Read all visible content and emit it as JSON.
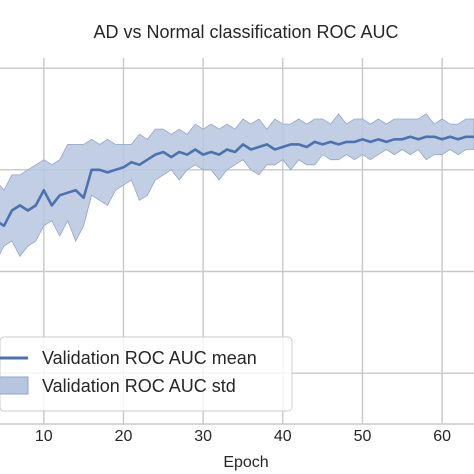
{
  "chart_data": {
    "type": "line",
    "title": "AD vs Normal classification ROC AUC",
    "xlabel": "Epoch",
    "ylabel": "",
    "xlim": [
      4.5,
      64
    ],
    "ylim": [
      0.3,
      1.02
    ],
    "xticks": [
      10,
      20,
      30,
      40,
      50,
      60
    ],
    "xtick_labels": [
      "10",
      "20",
      "30",
      "40",
      "50",
      "60"
    ],
    "ygrid": [
      0.4,
      0.6,
      0.8,
      1.0
    ],
    "grid": true,
    "legend_position": "lower-left",
    "colors": {
      "line": "#4c72b0",
      "band": "#b7c6df",
      "band_edge": "#8fa6cc",
      "grid": "#c8c8c8",
      "plot_background": "#ffffff"
    },
    "series": [
      {
        "name": "Validation ROC AUC mean",
        "kind": "line",
        "x": [
          4,
          5,
          6,
          7,
          8,
          9,
          10,
          11,
          12,
          13,
          14,
          15,
          16,
          17,
          18,
          19,
          20,
          21,
          22,
          23,
          24,
          25,
          26,
          27,
          28,
          29,
          30,
          31,
          32,
          33,
          34,
          35,
          36,
          37,
          38,
          39,
          40,
          41,
          42,
          43,
          44,
          45,
          46,
          47,
          48,
          49,
          50,
          51,
          52,
          53,
          54,
          55,
          56,
          57,
          58,
          59,
          60,
          61,
          62,
          63,
          64
        ],
        "values": [
          0.7,
          0.69,
          0.72,
          0.73,
          0.72,
          0.73,
          0.76,
          0.73,
          0.75,
          0.755,
          0.76,
          0.745,
          0.8,
          0.8,
          0.795,
          0.8,
          0.805,
          0.815,
          0.81,
          0.82,
          0.83,
          0.835,
          0.825,
          0.835,
          0.83,
          0.84,
          0.83,
          0.835,
          0.83,
          0.84,
          0.835,
          0.85,
          0.84,
          0.845,
          0.85,
          0.84,
          0.845,
          0.85,
          0.85,
          0.845,
          0.855,
          0.85,
          0.855,
          0.85,
          0.855,
          0.855,
          0.86,
          0.855,
          0.86,
          0.855,
          0.86,
          0.86,
          0.865,
          0.86,
          0.865,
          0.865,
          0.86,
          0.865,
          0.86,
          0.865,
          0.865
        ]
      },
      {
        "name": "Validation ROC AUC std",
        "kind": "band",
        "x": [
          4,
          5,
          6,
          7,
          8,
          9,
          10,
          11,
          12,
          13,
          14,
          15,
          16,
          17,
          18,
          19,
          20,
          21,
          22,
          23,
          24,
          25,
          26,
          27,
          28,
          29,
          30,
          31,
          32,
          33,
          34,
          35,
          36,
          37,
          38,
          39,
          40,
          41,
          42,
          43,
          44,
          45,
          46,
          47,
          48,
          49,
          50,
          51,
          52,
          53,
          54,
          55,
          56,
          57,
          58,
          59,
          60,
          61,
          62,
          63,
          64
        ],
        "lower": [
          0.62,
          0.65,
          0.66,
          0.63,
          0.65,
          0.66,
          0.69,
          0.7,
          0.67,
          0.7,
          0.66,
          0.69,
          0.75,
          0.74,
          0.73,
          0.76,
          0.77,
          0.78,
          0.74,
          0.75,
          0.78,
          0.79,
          0.8,
          0.78,
          0.8,
          0.81,
          0.8,
          0.8,
          0.78,
          0.8,
          0.81,
          0.82,
          0.8,
          0.79,
          0.81,
          0.81,
          0.82,
          0.8,
          0.82,
          0.81,
          0.81,
          0.83,
          0.82,
          0.82,
          0.83,
          0.82,
          0.83,
          0.82,
          0.83,
          0.84,
          0.83,
          0.84,
          0.83,
          0.84,
          0.82,
          0.83,
          0.83,
          0.84,
          0.83,
          0.84,
          0.84
        ],
        "upper": [
          0.78,
          0.76,
          0.79,
          0.79,
          0.8,
          0.81,
          0.82,
          0.81,
          0.82,
          0.85,
          0.85,
          0.85,
          0.86,
          0.85,
          0.86,
          0.85,
          0.85,
          0.85,
          0.87,
          0.86,
          0.88,
          0.88,
          0.87,
          0.88,
          0.87,
          0.89,
          0.88,
          0.89,
          0.88,
          0.89,
          0.88,
          0.9,
          0.89,
          0.9,
          0.88,
          0.9,
          0.89,
          0.89,
          0.9,
          0.89,
          0.9,
          0.9,
          0.89,
          0.91,
          0.89,
          0.9,
          0.9,
          0.89,
          0.9,
          0.89,
          0.9,
          0.9,
          0.9,
          0.9,
          0.91,
          0.89,
          0.9,
          0.89,
          0.89,
          0.9,
          0.9
        ]
      }
    ]
  }
}
